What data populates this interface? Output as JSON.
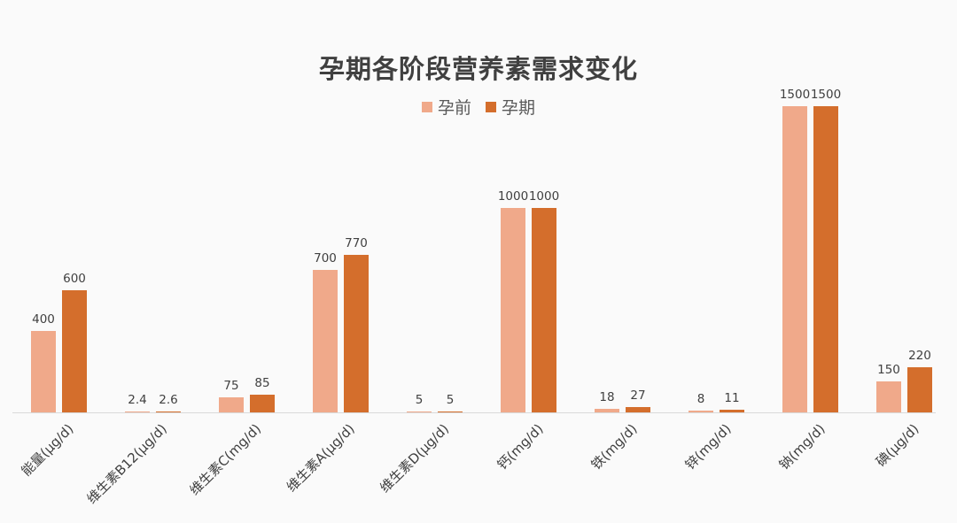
{
  "chart_data": {
    "type": "bar",
    "title": "孕期各阶段营养素需求变化",
    "xlabel": "",
    "ylabel": "",
    "grid": false,
    "legend_position": "top",
    "categories": [
      "能量(μg/d)",
      "维生素B12(μg/d)",
      "维生素C(mg/d)",
      "维生素A(μg/d)",
      "维生素D(μg/d)",
      "钙(mg/d)",
      "铁(mg/d)",
      "锌(mg/d)",
      "钠(mg/d)",
      "碘(μg/d)"
    ],
    "series": [
      {
        "name": "孕前",
        "color": "#f0a98a",
        "values": [
          400,
          2.4,
          75,
          700,
          5,
          1000,
          18,
          8,
          1500,
          150
        ],
        "labels": [
          "400",
          "2.4",
          "75",
          "700",
          "5",
          "1000",
          "18",
          "8",
          "1500",
          "150"
        ]
      },
      {
        "name": "孕期",
        "color": "#d46e2c",
        "values": [
          600,
          2.6,
          85,
          770,
          5,
          1000,
          27,
          11,
          1500,
          220
        ],
        "labels": [
          "600",
          "2.6",
          "85",
          "770",
          "5",
          "1000",
          "27",
          "11",
          "1500",
          "220"
        ]
      }
    ],
    "ylim": [
      0,
      1500
    ]
  }
}
